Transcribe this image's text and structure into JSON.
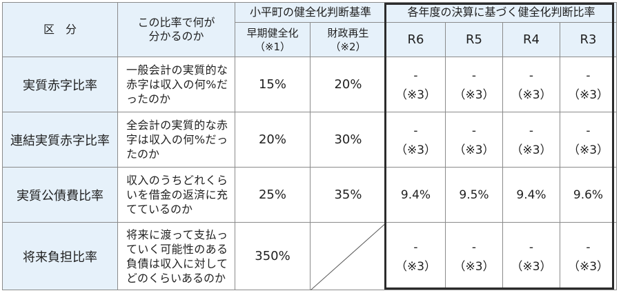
{
  "headers": {
    "category": "区　分",
    "meaning": "この比率で何が分かるのか",
    "town_standard": "小平町の健全化判断基準",
    "early": "早期健全化",
    "early_note": "（※1）",
    "rebuild": "財政再生",
    "rebuild_note": "（※2）",
    "ratios_title": "各年度の決算に基づく健全化判断比率",
    "years": [
      "R6",
      "R5",
      "R4",
      "R3"
    ]
  },
  "rows": [
    {
      "label": "実質赤字比率",
      "desc": "一般会計の実質的な赤字は収入の何%だったのか",
      "early": "15%",
      "rebuild": "20%",
      "values": [
        {
          "dash": "-",
          "note": "（※3）"
        },
        {
          "dash": "-",
          "note": "（※3）"
        },
        {
          "dash": "-",
          "note": "（※3）"
        },
        {
          "dash": "-",
          "note": "（※3）"
        }
      ]
    },
    {
      "label": "連結実質赤字比率",
      "desc": "全会計の実質的な赤字は収入の何%だったのか",
      "early": "20%",
      "rebuild": "30%",
      "values": [
        {
          "dash": "-",
          "note": "（※3）"
        },
        {
          "dash": "-",
          "note": "（※3）"
        },
        {
          "dash": "-",
          "note": "（※3）"
        },
        {
          "dash": "-",
          "note": "（※3）"
        }
      ]
    },
    {
      "label": "実質公債費比率",
      "desc": "収入のうちどれくらいを借金の返済に充てているのか",
      "early": "25%",
      "rebuild": "35%",
      "values": [
        "9.4%",
        "9.5%",
        "9.4%",
        "9.6%"
      ]
    },
    {
      "label": "将来負担比率",
      "desc": "将来に渡って支払っていく可能性のある負債は収入に対してどのくらいあるのか",
      "early": "350%",
      "rebuild": "",
      "values": [
        {
          "dash": "-",
          "note": "（※3）"
        },
        {
          "dash": "-",
          "note": "（※3）"
        },
        {
          "dash": "-",
          "note": "（※3）"
        },
        {
          "dash": "-",
          "note": "（※3）"
        }
      ]
    }
  ]
}
